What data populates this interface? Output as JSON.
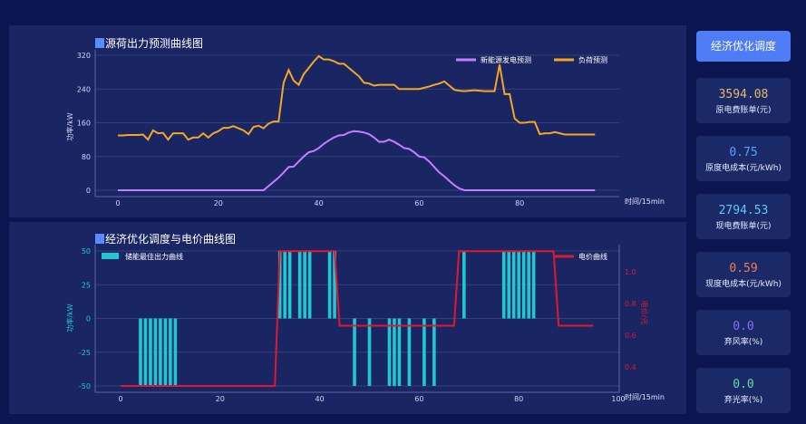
{
  "sidebar": {
    "button_label": "经济优化调度",
    "cards": [
      {
        "value": "3594.08",
        "label": "原电费账单(元)",
        "color": "#e8b86a"
      },
      {
        "value": "0.75",
        "label": "原度电成本(元/kWh)",
        "color": "#4ea4ff"
      },
      {
        "value": "2794.53",
        "label": "现电费账单(元)",
        "color": "#5ec8ff"
      },
      {
        "value": "0.59",
        "label": "现度电成本(元/kWh)",
        "color": "#f07a55"
      },
      {
        "value": "0.0",
        "label": "弃风率(%)",
        "color": "#8a6cff"
      },
      {
        "value": "0.0",
        "label": "弃光率(%)",
        "color": "#5fe0a0"
      }
    ]
  },
  "chart_data": [
    {
      "type": "line",
      "title": "源荷出力预测曲线图",
      "xlabel": "时间/15min",
      "ylabel": "功率/kW",
      "xlim": [
        0,
        95
      ],
      "ylim": [
        0,
        320
      ],
      "xticks": [
        0,
        20,
        40,
        60,
        80
      ],
      "yticks": [
        0,
        80,
        160,
        240,
        320
      ],
      "grid": true,
      "legend": "top-right",
      "series": [
        {
          "name": "新能源发电预测",
          "color": "#c77dff",
          "values": [
            0,
            0,
            0,
            0,
            0,
            0,
            0,
            0,
            0,
            0,
            0,
            0,
            0,
            0,
            0,
            0,
            0,
            0,
            0,
            0,
            0,
            0,
            0,
            0,
            0,
            0,
            0,
            0,
            0,
            0,
            10,
            20,
            30,
            42,
            55,
            56,
            68,
            80,
            90,
            93,
            100,
            110,
            118,
            125,
            130,
            131,
            137,
            140,
            139,
            137,
            133,
            125,
            115,
            115,
            120,
            115,
            108,
            100,
            98,
            90,
            80,
            78,
            68,
            55,
            42,
            33,
            22,
            12,
            4,
            0,
            0,
            0,
            0,
            0,
            0,
            0,
            0,
            0,
            0,
            0,
            0,
            0,
            0,
            0,
            0,
            0,
            0,
            0,
            0,
            0,
            0,
            0,
            0,
            0,
            0,
            0
          ]
        },
        {
          "name": "负荷预测",
          "color": "#f5a623",
          "values": [
            130,
            130,
            131,
            131,
            131,
            132,
            120,
            142,
            135,
            136,
            120,
            135,
            135,
            135,
            120,
            125,
            125,
            135,
            125,
            135,
            140,
            148,
            148,
            152,
            147,
            142,
            133,
            150,
            153,
            147,
            158,
            163,
            163,
            255,
            285,
            260,
            250,
            275,
            290,
            305,
            318,
            310,
            310,
            306,
            300,
            300,
            290,
            280,
            270,
            255,
            253,
            248,
            250,
            250,
            250,
            250,
            240,
            240,
            240,
            240,
            240,
            243,
            246,
            250,
            253,
            258,
            248,
            238,
            236,
            235,
            236,
            237,
            236,
            235,
            235,
            235,
            298,
            228,
            228,
            170,
            160,
            160,
            162,
            162,
            133,
            135,
            135,
            138,
            135,
            132,
            132,
            132,
            132,
            132,
            132,
            132
          ]
        }
      ]
    },
    {
      "type": "bar",
      "title": "经济优化调度与电价曲线图",
      "xlabel": "时间/15min",
      "ylabel": "功率/kW",
      "ylabel_right": "电价/元",
      "xlim": [
        0,
        100
      ],
      "ylim": [
        -50,
        50
      ],
      "ylim_right": [
        0.28,
        1.13
      ],
      "xticks": [
        0,
        20,
        40,
        60,
        80,
        100
      ],
      "yticks": [
        -50,
        -25,
        0,
        25,
        50
      ],
      "yticks_right": [
        0.4,
        0.6,
        0.8,
        1.0
      ],
      "grid": true,
      "series": [
        {
          "name": "储能最佳出力曲线",
          "color": "#1ec8d2",
          "legend": "top-left",
          "bars": {
            "4": -50,
            "5": -50,
            "6": -50,
            "7": -50,
            "8": -50,
            "9": -50,
            "10": -50,
            "11": -50,
            "32": 50,
            "33": 50,
            "34": 50,
            "36": 50,
            "37": 50,
            "38": 50,
            "42": 50,
            "43": 50,
            "47": -50,
            "50": -50,
            "54": -50,
            "55": -50,
            "56": -50,
            "58": -50,
            "61": -50,
            "63": -50,
            "69": 50,
            "77": 50,
            "78": 50,
            "79": 50,
            "80": 50,
            "81": 50,
            "82": 50,
            "83": 50
          }
        },
        {
          "name": "电价曲线",
          "color": "#e0182d",
          "legend": "top-right",
          "values": [
            0.28,
            0.28,
            0.28,
            0.28,
            0.28,
            0.28,
            0.28,
            0.28,
            0.28,
            0.28,
            0.28,
            0.28,
            0.28,
            0.28,
            0.28,
            0.28,
            0.28,
            0.28,
            0.28,
            0.28,
            0.28,
            0.28,
            0.28,
            0.28,
            0.28,
            0.28,
            0.28,
            0.28,
            0.28,
            0.28,
            0.28,
            0.28,
            1.13,
            1.13,
            1.13,
            1.13,
            1.13,
            1.13,
            1.13,
            1.13,
            1.13,
            1.13,
            1.13,
            1.13,
            0.66,
            0.66,
            0.66,
            0.66,
            0.66,
            0.66,
            0.66,
            0.66,
            0.66,
            0.66,
            0.66,
            0.66,
            0.66,
            0.66,
            0.66,
            0.66,
            0.66,
            0.66,
            0.66,
            0.66,
            0.66,
            0.66,
            0.66,
            0.66,
            1.13,
            1.13,
            1.13,
            1.13,
            1.13,
            1.13,
            1.13,
            1.13,
            1.13,
            1.13,
            1.13,
            1.13,
            1.13,
            1.13,
            1.13,
            1.13,
            1.13,
            1.13,
            1.13,
            1.13,
            0.66,
            0.66,
            0.66,
            0.66,
            0.66,
            0.66,
            0.66,
            0.66
          ]
        }
      ]
    }
  ]
}
